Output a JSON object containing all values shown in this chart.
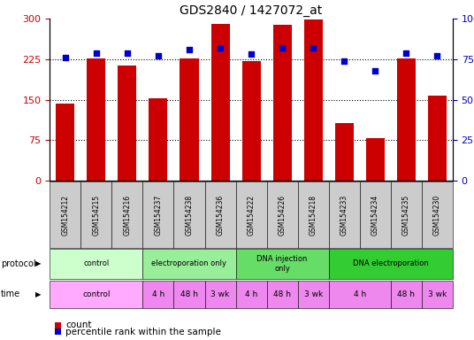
{
  "title": "GDS2840 / 1427072_at",
  "samples": [
    "GSM154212",
    "GSM154215",
    "GSM154216",
    "GSM154237",
    "GSM154238",
    "GSM154236",
    "GSM154222",
    "GSM154226",
    "GSM154218",
    "GSM154233",
    "GSM154234",
    "GSM154235",
    "GSM154230"
  ],
  "counts": [
    143,
    226,
    213,
    152,
    226,
    291,
    222,
    289,
    298,
    107,
    79,
    226,
    158
  ],
  "percentiles": [
    76,
    79,
    79,
    77,
    81,
    82,
    78,
    82,
    82,
    74,
    68,
    79,
    77
  ],
  "ylim_left": [
    0,
    300
  ],
  "ylim_right": [
    0,
    100
  ],
  "yticks_left": [
    0,
    75,
    150,
    225,
    300
  ],
  "yticks_right": [
    0,
    25,
    50,
    75,
    100
  ],
  "hlines": [
    75,
    150,
    225
  ],
  "bar_color": "#cc0000",
  "dot_color": "#0000cc",
  "protocol_groups": [
    {
      "label": "control",
      "start": 0,
      "end": 3,
      "color": "#ccffcc"
    },
    {
      "label": "electroporation only",
      "start": 3,
      "end": 6,
      "color": "#99ee99"
    },
    {
      "label": "DNA injection\nonly",
      "start": 6,
      "end": 9,
      "color": "#66dd66"
    },
    {
      "label": "DNA electroporation",
      "start": 9,
      "end": 13,
      "color": "#33cc33"
    }
  ],
  "time_groups": [
    {
      "label": "control",
      "start": 0,
      "end": 3,
      "color": "#ffaaff"
    },
    {
      "label": "4 h",
      "start": 3,
      "end": 4,
      "color": "#ee88ee"
    },
    {
      "label": "48 h",
      "start": 4,
      "end": 5,
      "color": "#ee88ee"
    },
    {
      "label": "3 wk",
      "start": 5,
      "end": 6,
      "color": "#ee88ee"
    },
    {
      "label": "4 h",
      "start": 6,
      "end": 7,
      "color": "#ee88ee"
    },
    {
      "label": "48 h",
      "start": 7,
      "end": 8,
      "color": "#ee88ee"
    },
    {
      "label": "3 wk",
      "start": 8,
      "end": 9,
      "color": "#ee88ee"
    },
    {
      "label": "4 h",
      "start": 9,
      "end": 11,
      "color": "#ee88ee"
    },
    {
      "label": "48 h",
      "start": 11,
      "end": 12,
      "color": "#ee88ee"
    },
    {
      "label": "3 wk",
      "start": 12,
      "end": 13,
      "color": "#ee88ee"
    }
  ],
  "legend_count_color": "#cc0000",
  "legend_pct_color": "#0000cc",
  "bg_color": "#ffffff",
  "left_label_color": "#cc0000",
  "right_label_color": "#0000cc",
  "sample_box_color": "#cccccc",
  "bar_width": 0.6
}
